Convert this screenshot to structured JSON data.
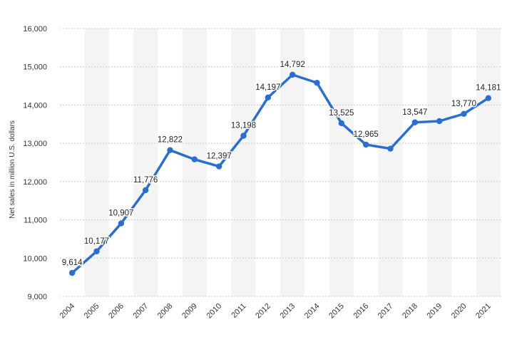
{
  "chart_data": {
    "type": "line",
    "title": "",
    "xlabel": "",
    "ylabel": "Net sales in million U.S. dollars",
    "ylim": [
      9000,
      16000
    ],
    "yticks": [
      "9,000",
      "10,000",
      "11,000",
      "12,000",
      "13,000",
      "14,000",
      "15,000",
      "16,000"
    ],
    "grid": true,
    "legend": "none",
    "line_color": "#2a6fd0",
    "x": [
      "2004",
      "2005",
      "2006",
      "2007",
      "2008",
      "2009",
      "2010",
      "2011",
      "2012",
      "2013",
      "2014",
      "2015",
      "2016",
      "2017",
      "2018",
      "2019",
      "2020",
      "2021"
    ],
    "series": [
      {
        "values": [
          9614,
          10177,
          10907,
          11776,
          12822,
          12580,
          12397,
          13198,
          14197,
          14792,
          14580,
          13525,
          12965,
          12860,
          13547,
          13580,
          13770,
          14181
        ],
        "labels": [
          "9,614",
          "10,177",
          "10,907",
          "11,776",
          "12,822",
          "",
          "12,397",
          "13,198",
          "14,197",
          "14,792",
          "",
          "13,525",
          "12,965",
          "",
          "13,547",
          "",
          "13,770",
          "14,181"
        ]
      }
    ]
  }
}
